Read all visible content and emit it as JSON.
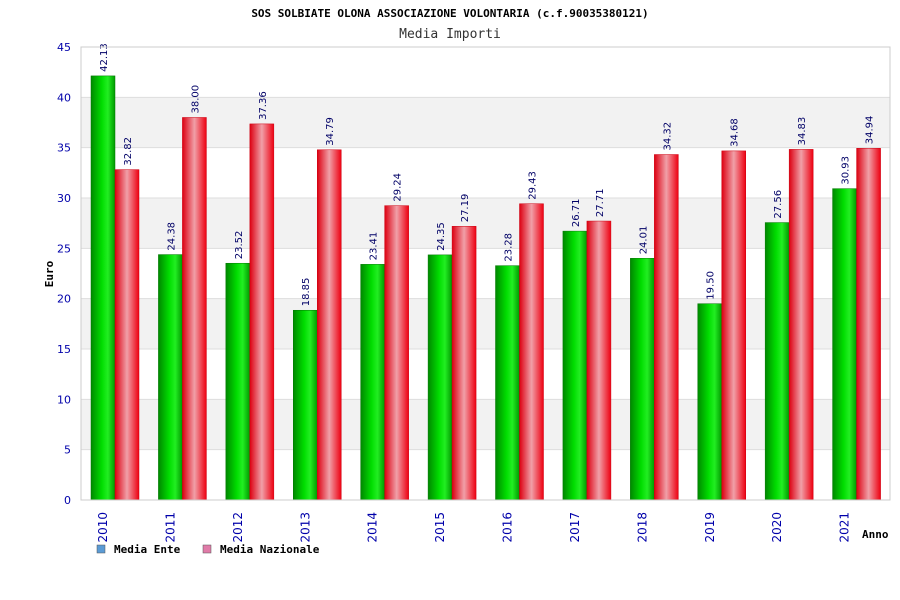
{
  "chart_data": {
    "type": "bar",
    "title": "SOS SOLBIATE OLONA ASSOCIAZIONE VOLONTARIA (c.f.90035380121)",
    "subtitle": "Media Importi",
    "xlabel": "Anno",
    "ylabel": "Euro",
    "ylim": [
      0,
      45
    ],
    "yticks": [
      0,
      5,
      10,
      15,
      20,
      25,
      30,
      35,
      40,
      45
    ],
    "categories": [
      "2010",
      "2011",
      "2012",
      "2013",
      "2014",
      "2015",
      "2016",
      "2017",
      "2018",
      "2019",
      "2020",
      "2021"
    ],
    "series": [
      {
        "name": "Media Ente",
        "color": "#00b000",
        "legend_color": "#5b9bd5",
        "values": [
          42.13,
          24.38,
          23.52,
          18.85,
          23.41,
          24.35,
          23.28,
          26.71,
          24.01,
          19.5,
          27.56,
          30.93
        ],
        "labels": [
          "42.13",
          "24.38",
          "23.52",
          "18.85",
          "23.41",
          "24.35",
          "23.28",
          "26.71",
          "24.01",
          "19.50",
          "27.56",
          "30.93"
        ]
      },
      {
        "name": "Media Nazionale",
        "color": "#e8001c",
        "legend_color": "#e07ba8",
        "values": [
          32.82,
          38.0,
          37.36,
          34.79,
          29.24,
          27.19,
          29.43,
          27.71,
          34.32,
          34.68,
          34.83,
          34.94
        ],
        "labels": [
          "32.82",
          "38.00",
          "37.36",
          "34.79",
          "29.24",
          "27.19",
          "29.43",
          "27.71",
          "34.32",
          "34.68",
          "34.83",
          "34.94"
        ]
      }
    ],
    "grid": true,
    "legend_position": "bottom-left"
  }
}
